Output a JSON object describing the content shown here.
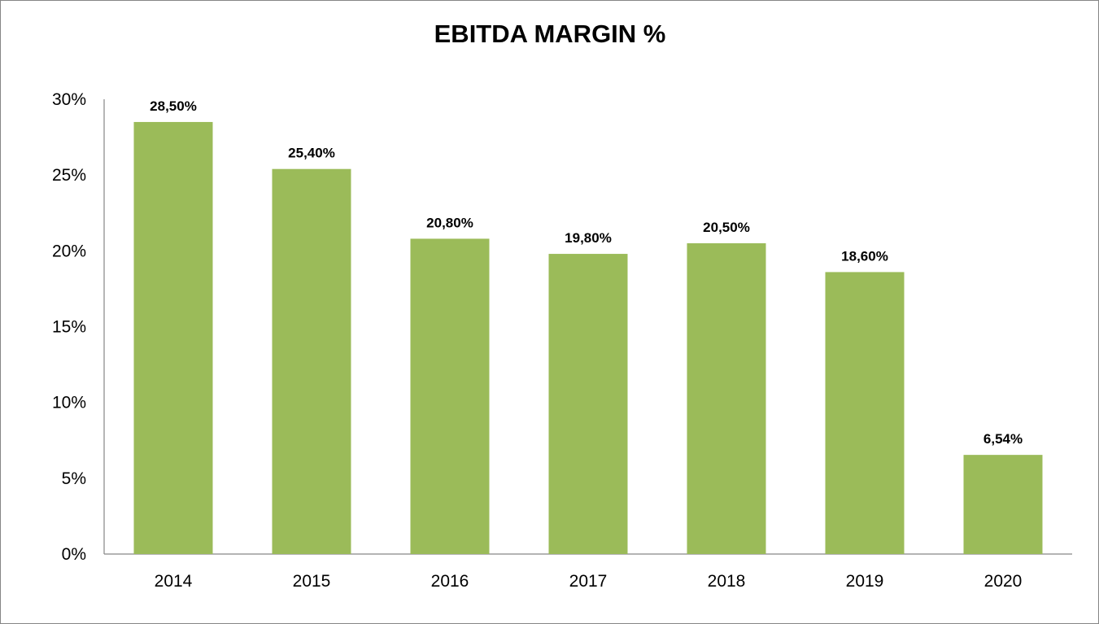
{
  "chart_data": {
    "type": "bar",
    "title": "EBITDA MARGIN %",
    "xlabel": "",
    "ylabel": "",
    "categories": [
      "2014",
      "2015",
      "2016",
      "2017",
      "2018",
      "2019",
      "2020"
    ],
    "values": [
      28.5,
      25.4,
      20.8,
      19.8,
      20.5,
      18.6,
      6.54
    ],
    "data_labels": [
      "28,50%",
      "25,40%",
      "20,80%",
      "19,80%",
      "20,50%",
      "18,60%",
      "6,54%"
    ],
    "y_ticks": [
      "0%",
      "5%",
      "10%",
      "15%",
      "20%",
      "25%",
      "30%"
    ],
    "ylim": [
      0,
      30
    ],
    "grid": false,
    "legend": "none",
    "bar_color": "#9bbb59"
  }
}
